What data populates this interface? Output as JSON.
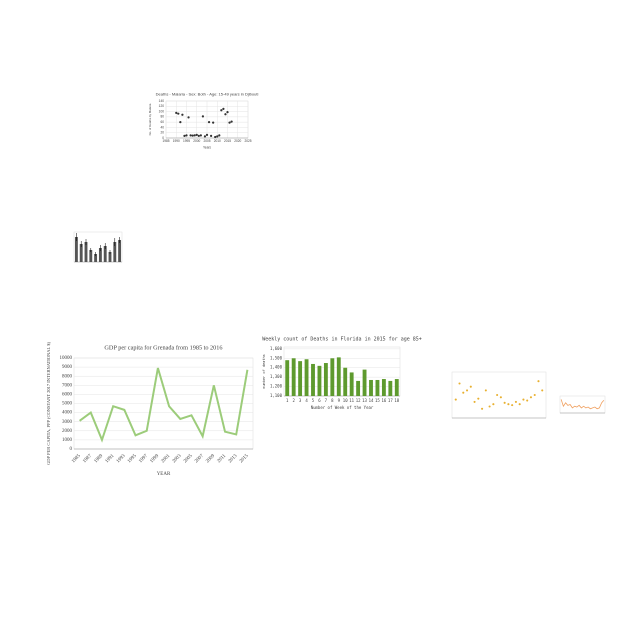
{
  "chart_data": [
    {
      "type": "scatter",
      "title": "Deaths - Malaria - Sex: Both - Age: 15-49 years in Djibouti",
      "x_label": "Years",
      "y_label": "No. of Deaths by Malaria",
      "x": [
        1990,
        1991,
        1992,
        1993,
        1994,
        1995,
        1996,
        1997,
        1998,
        1999,
        2000,
        2001,
        2002,
        2003,
        2004,
        2005,
        2006,
        2007,
        2008,
        2009,
        2010,
        2011,
        2012,
        2013,
        2014,
        2015,
        2016,
        2017
      ],
      "values": [
        95,
        92,
        60,
        88,
        8,
        10,
        78,
        10,
        9,
        10,
        12,
        8,
        10,
        82,
        6,
        12,
        60,
        8,
        58,
        4,
        6,
        10,
        105,
        110,
        90,
        98,
        58,
        62
      ],
      "color": "#333333",
      "xlim": [
        1985,
        2025
      ],
      "xticks": [
        1985,
        1990,
        1995,
        2000,
        2005,
        2010,
        2015,
        2020,
        2025
      ],
      "ylim": [
        0,
        140
      ],
      "yticks": [
        0,
        20,
        40,
        60,
        80,
        100,
        120,
        140
      ],
      "grid": true
    },
    {
      "type": "bar",
      "categories": [
        null,
        null,
        null,
        null,
        null,
        null,
        null,
        null,
        null,
        null
      ],
      "values": [
        25,
        18,
        20,
        12,
        8,
        14,
        16,
        10,
        20,
        22
      ],
      "errors": [
        4,
        3,
        3,
        2,
        2,
        3,
        3,
        2,
        4,
        3
      ],
      "color": "#555555",
      "ylim": [
        0,
        30
      ],
      "grid": true
    },
    {
      "type": "line",
      "title": "GDP per capita for Grenada from 1985 to 2016",
      "x_label": "YEAR",
      "y_label": "GDP PER CAPITA, PPP (CONSTANT 2017 INTERNATIONAL $)",
      "categories": [
        "1985",
        "1987",
        "1989",
        "1991",
        "1993",
        "1995",
        "1997",
        "1999",
        "2001",
        "2003",
        "2005",
        "2007",
        "2009",
        "2011",
        "2013",
        "2015"
      ],
      "values": [
        3100,
        4000,
        1000,
        4700,
        4300,
        1500,
        2000,
        8900,
        4700,
        3300,
        3700,
        1400,
        7000,
        1900,
        1600,
        8700
      ],
      "color": "#9ccc7a",
      "ylim": [
        0,
        10000
      ],
      "yticks": [
        0,
        1000,
        2000,
        3000,
        4000,
        5000,
        6000,
        7000,
        8000,
        9000,
        10000
      ],
      "grid": true
    },
    {
      "type": "bar",
      "title": "Weekly count of Deaths in Florida in 2015 for age 85+",
      "x_label": "Number of Week of the Year",
      "y_label": "number of deaths",
      "categories": [
        1,
        2,
        3,
        4,
        5,
        6,
        7,
        8,
        9,
        10,
        11,
        12,
        13,
        14,
        15,
        16,
        17,
        18
      ],
      "values": [
        1480,
        1500,
        1470,
        1490,
        1440,
        1420,
        1450,
        1500,
        1510,
        1400,
        1350,
        1260,
        1380,
        1270,
        1270,
        1280,
        1260,
        1280
      ],
      "color": "#5e9a2e",
      "ylim": [
        1100,
        1620
      ],
      "yticks": [
        {
          "value": 1100,
          "label": "1,100"
        },
        {
          "value": 1200,
          "label": "1,200"
        },
        {
          "value": 1300,
          "label": "1,300"
        },
        {
          "value": 1400,
          "label": "1,400"
        },
        {
          "value": 1500,
          "label": "1,500"
        },
        {
          "value": 1600,
          "label": "1,600"
        }
      ],
      "grid": true
    },
    {
      "type": "scatter",
      "x": [
        1,
        2,
        3,
        4,
        5,
        6,
        7,
        8,
        9,
        10,
        11,
        12,
        13,
        14,
        15,
        16,
        17,
        18,
        19,
        20,
        21,
        22,
        23,
        24
      ],
      "values": [
        40,
        75,
        55,
        60,
        68,
        35,
        42,
        20,
        60,
        25,
        30,
        50,
        45,
        33,
        30,
        28,
        35,
        30,
        40,
        38,
        45,
        50,
        80,
        60
      ],
      "color": "#e8b030",
      "xlim": [
        0,
        25
      ],
      "ylim": [
        0,
        100
      ],
      "grid": true
    },
    {
      "type": "line",
      "categories": [
        null,
        null,
        null,
        null,
        null,
        null,
        null,
        null,
        null,
        null,
        null,
        null,
        null,
        null,
        null,
        null,
        null,
        null,
        null,
        null
      ],
      "values": [
        80,
        40,
        60,
        45,
        50,
        30,
        40,
        35,
        45,
        30,
        40,
        30,
        35,
        25,
        30,
        35,
        25,
        30,
        60,
        75
      ],
      "color": "#f0a060",
      "ylim": [
        0,
        100
      ]
    }
  ]
}
